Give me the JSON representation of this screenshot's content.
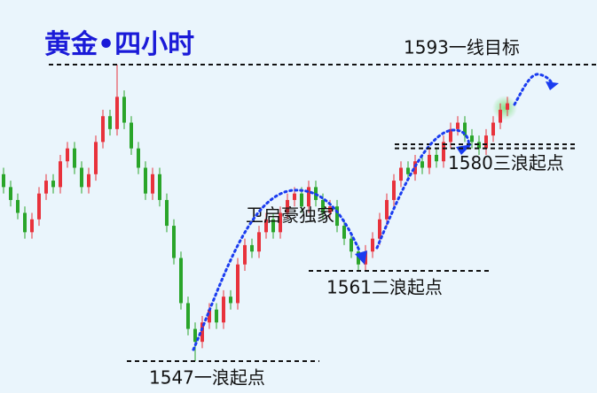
{
  "chart_data": {
    "type": "candlestick",
    "title": "黄金•四小时",
    "annotation": "卫启豪独家",
    "up_color": "#e8323c",
    "down_color": "#2aa52a",
    "open": [
      1576,
      1574,
      1572,
      1570,
      1567,
      1569,
      1573,
      1575,
      1574,
      1578,
      1580,
      1577,
      1574,
      1576,
      1581,
      1585,
      1583,
      1588,
      1584,
      1580,
      1577,
      1573,
      1576,
      1572,
      1568,
      1563,
      1556,
      1552,
      1550,
      1553,
      1555,
      1553,
      1557,
      1556,
      1562,
      1565,
      1564,
      1567,
      1569,
      1567,
      1570,
      1572,
      1573,
      1571,
      1574,
      1572,
      1570,
      1571,
      1568,
      1566,
      1564,
      1562,
      1564,
      1566,
      1569,
      1572,
      1575,
      1577,
      1576,
      1578,
      1577,
      1579,
      1578,
      1581,
      1583,
      1584,
      1582,
      1581,
      1580,
      1582,
      1584,
      1586
    ],
    "high": [
      1577,
      1575,
      1573,
      1571,
      1570,
      1574,
      1576,
      1576,
      1579,
      1581,
      1581,
      1578,
      1577,
      1582,
      1586,
      1586,
      1593,
      1589,
      1585,
      1581,
      1578,
      1577,
      1577,
      1573,
      1569,
      1564,
      1557,
      1553,
      1554,
      1556,
      1556,
      1558,
      1558,
      1563,
      1566,
      1566,
      1568,
      1570,
      1570,
      1571,
      1573,
      1574,
      1574,
      1575,
      1575,
      1573,
      1572,
      1572,
      1569,
      1567,
      1565,
      1565,
      1567,
      1570,
      1573,
      1576,
      1578,
      1578,
      1579,
      1579,
      1580,
      1580,
      1582,
      1584,
      1585,
      1585,
      1583,
      1582,
      1583,
      1585,
      1587,
      1588
    ],
    "low": [
      1573,
      1571,
      1569,
      1566,
      1566,
      1568,
      1572,
      1573,
      1573,
      1577,
      1576,
      1573,
      1573,
      1575,
      1580,
      1582,
      1582,
      1583,
      1579,
      1576,
      1572,
      1572,
      1571,
      1567,
      1562,
      1555,
      1551,
      1547,
      1549,
      1552,
      1552,
      1552,
      1555,
      1555,
      1561,
      1563,
      1563,
      1566,
      1566,
      1566,
      1569,
      1571,
      1570,
      1570,
      1571,
      1569,
      1569,
      1567,
      1565,
      1563,
      1561,
      1561,
      1563,
      1565,
      1568,
      1571,
      1574,
      1575,
      1575,
      1576,
      1576,
      1577,
      1577,
      1580,
      1582,
      1581,
      1580,
      1579,
      1579,
      1581,
      1583,
      1585
    ],
    "close": [
      1574,
      1572,
      1570,
      1567,
      1569,
      1573,
      1575,
      1574,
      1578,
      1580,
      1577,
      1574,
      1576,
      1581,
      1585,
      1583,
      1588,
      1584,
      1580,
      1577,
      1573,
      1576,
      1572,
      1568,
      1563,
      1556,
      1552,
      1550,
      1553,
      1555,
      1553,
      1557,
      1556,
      1562,
      1565,
      1564,
      1567,
      1569,
      1567,
      1570,
      1572,
      1573,
      1571,
      1574,
      1572,
      1570,
      1571,
      1568,
      1566,
      1564,
      1562,
      1564,
      1566,
      1569,
      1572,
      1575,
      1577,
      1576,
      1578,
      1577,
      1579,
      1578,
      1581,
      1583,
      1584,
      1582,
      1581,
      1580,
      1582,
      1584,
      1586,
      1587
    ],
    "levels": [
      {
        "value": 1593,
        "label": "1593一线目标"
      },
      {
        "value": 1580,
        "label": "1580三浪起点"
      },
      {
        "value": 1561,
        "label": "1561二浪起点"
      },
      {
        "value": 1547,
        "label": "1547一浪起点"
      }
    ]
  }
}
